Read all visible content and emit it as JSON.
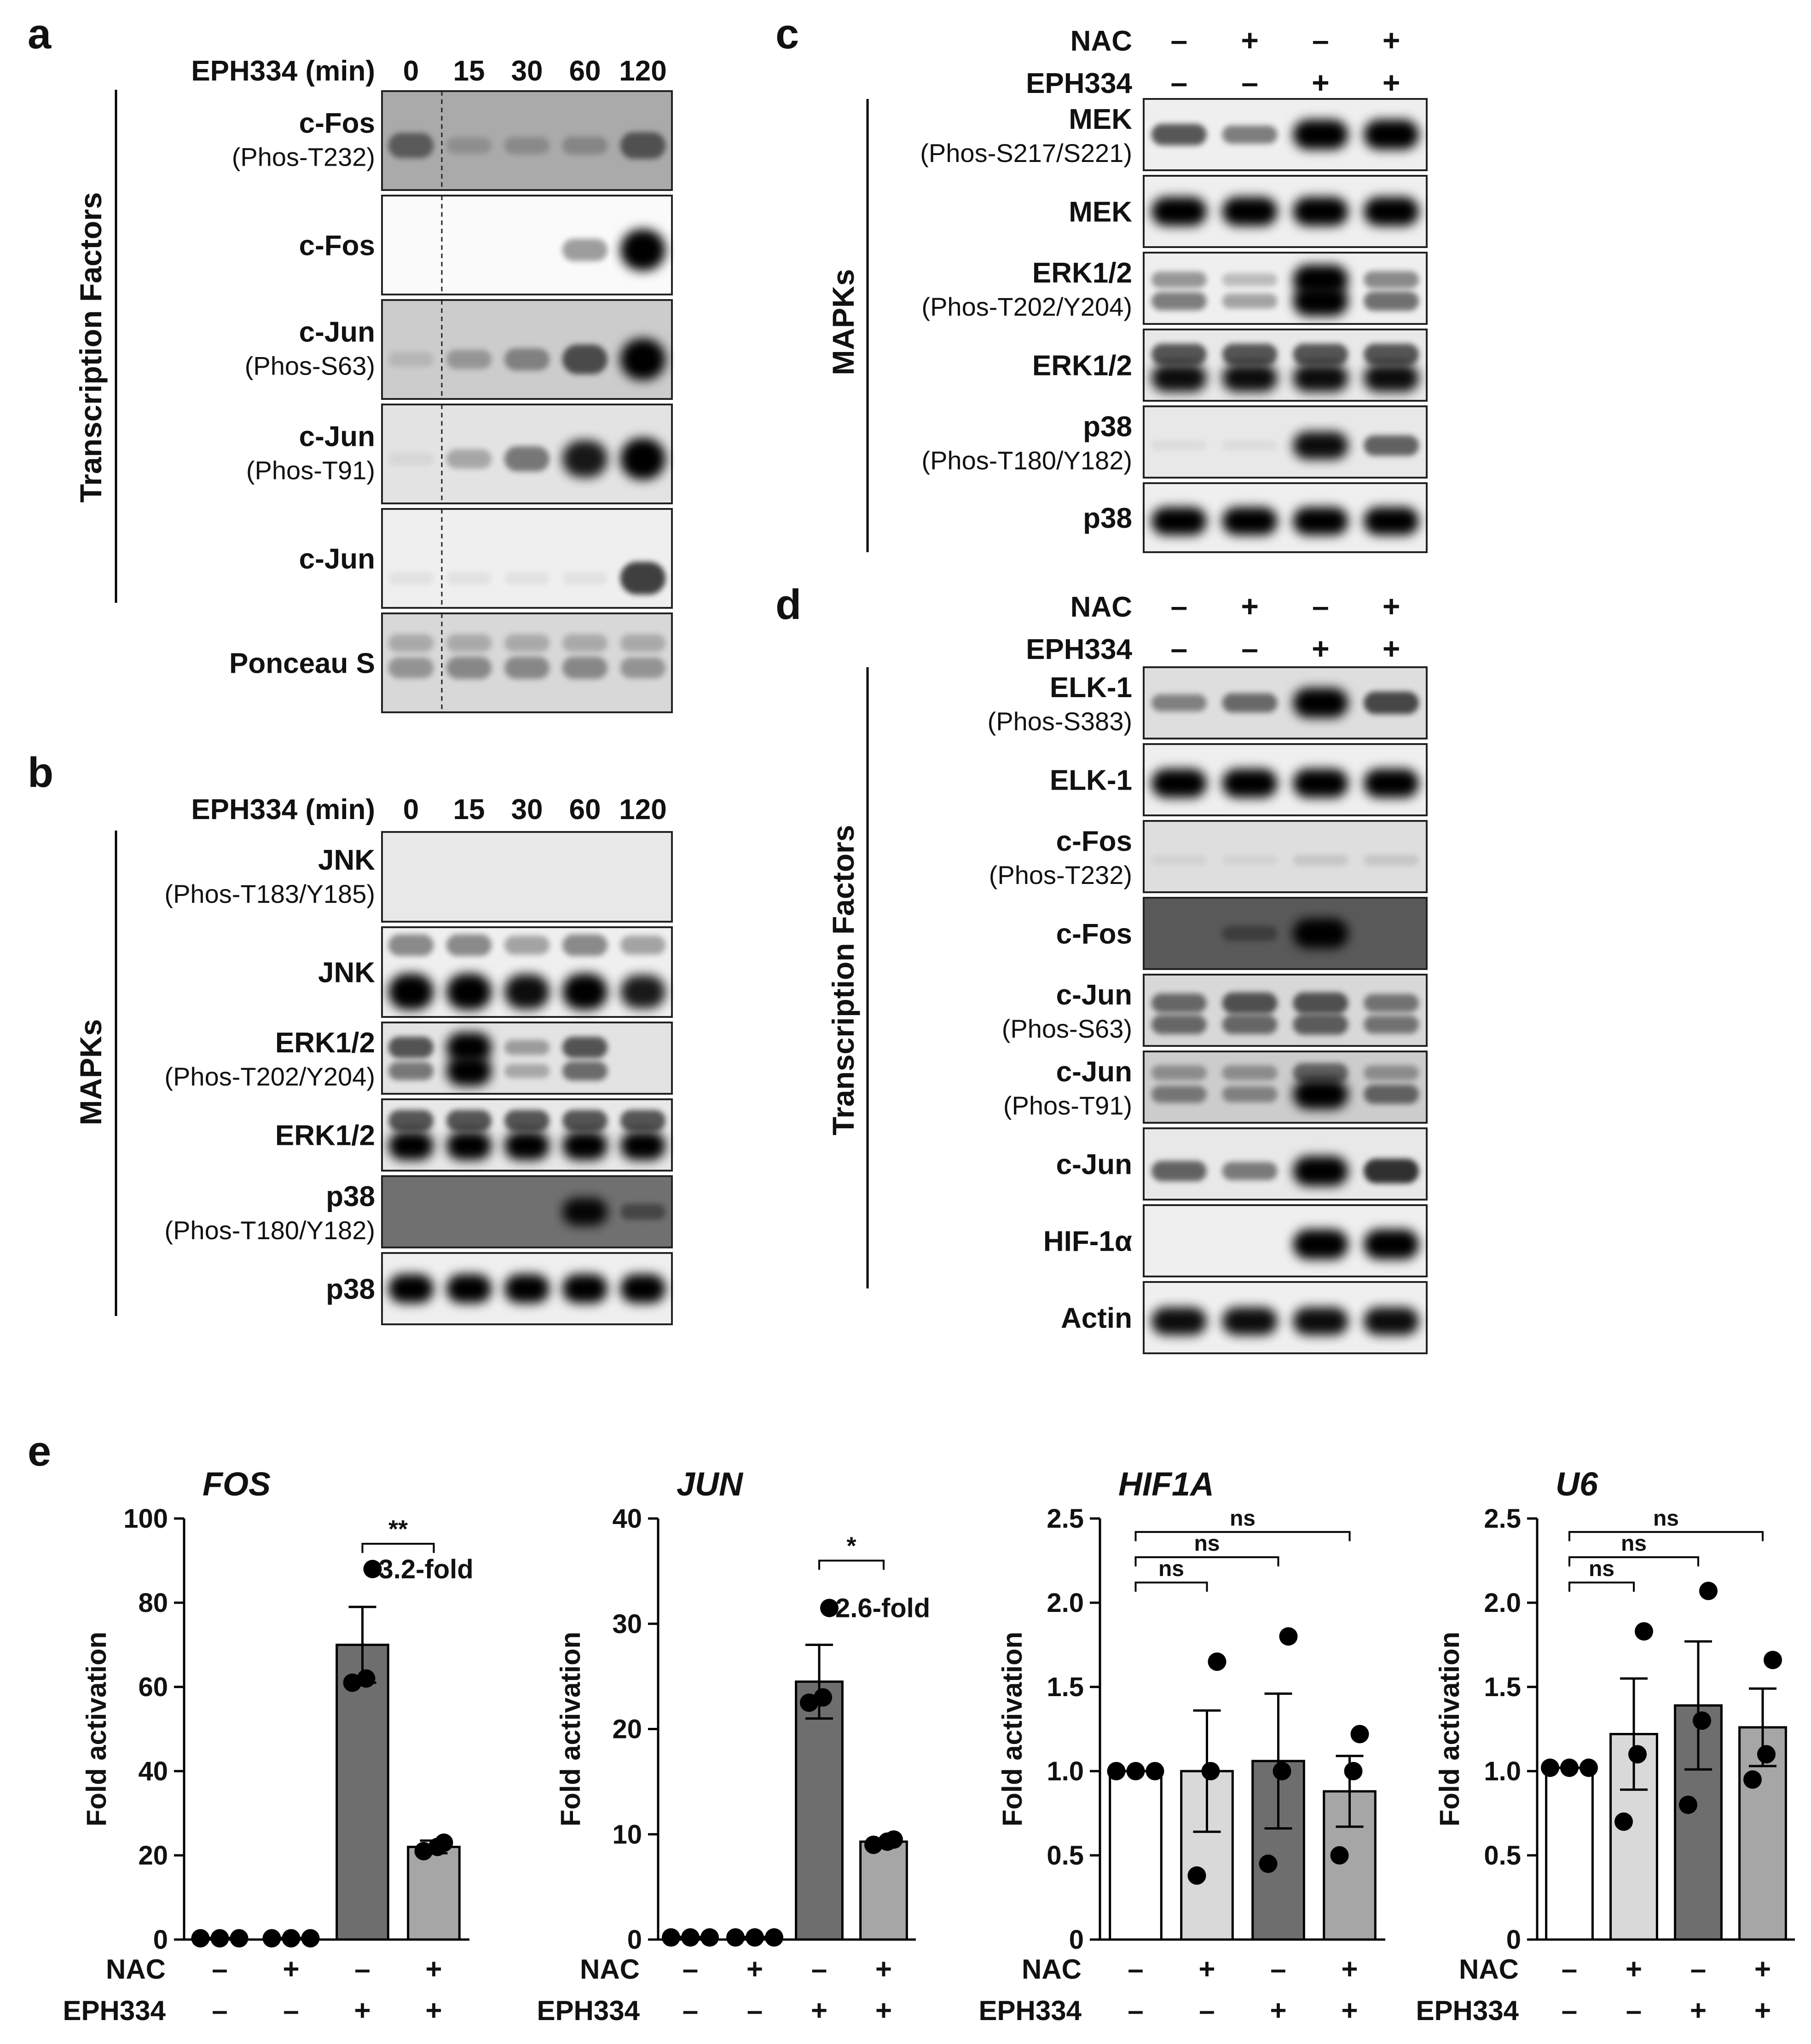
{
  "panel_a": {
    "letter": "a",
    "header_label": "EPH334 (min)",
    "lanes": [
      "0",
      "15",
      "30",
      "60",
      "120"
    ],
    "side_label": "Transcription Factors",
    "blots": [
      {
        "name": "c-Fos",
        "sub": "(Phos-T232)",
        "dark": 0.35
      },
      {
        "name": "c-Fos",
        "sub": "",
        "dark": 0.0
      },
      {
        "name": "c-Jun",
        "sub": "(Phos-S63)",
        "dark": 0.2
      },
      {
        "name": "c-Jun",
        "sub": "(Phos-T91)",
        "dark": 0.1
      },
      {
        "name": "c-Jun",
        "sub": "",
        "dark": 0.05
      },
      {
        "name": "Ponceau S",
        "sub": "",
        "dark": 0.15
      }
    ]
  },
  "panel_b": {
    "letter": "b",
    "header_label": "EPH334 (min)",
    "lanes": [
      "0",
      "15",
      "30",
      "60",
      "120"
    ],
    "side_label": "MAPKs",
    "blots": [
      {
        "name": "JNK",
        "sub": "(Phos-T183/Y185)",
        "dark": 0.08
      },
      {
        "name": "JNK",
        "sub": "",
        "dark": 0.05
      },
      {
        "name": "ERK1/2",
        "sub": "(Phos-T202/Y204)",
        "dark": 0.1
      },
      {
        "name": "ERK1/2",
        "sub": "",
        "dark": 0.08
      },
      {
        "name": "p38",
        "sub": "(Phos-T180/Y182)",
        "dark": 0.6
      },
      {
        "name": "p38",
        "sub": "",
        "dark": 0.05
      }
    ]
  },
  "panel_c": {
    "letter": "c",
    "cond_rows": [
      {
        "label": "NAC",
        "signs": [
          "–",
          "+",
          "–",
          "+"
        ]
      },
      {
        "label": "EPH334",
        "signs": [
          "–",
          "–",
          "+",
          "+"
        ]
      }
    ],
    "side_label": "MAPKs",
    "blots": [
      {
        "name": "MEK",
        "sub": "(Phos-S217/S221)",
        "dark": 0.05
      },
      {
        "name": "MEK",
        "sub": "",
        "dark": 0.05
      },
      {
        "name": "ERK1/2",
        "sub": "(Phos-T202/Y204)",
        "dark": 0.05
      },
      {
        "name": "ERK1/2",
        "sub": "",
        "dark": 0.08
      },
      {
        "name": "p38",
        "sub": "(Phos-T180/Y182)",
        "dark": 0.08
      },
      {
        "name": "p38",
        "sub": "",
        "dark": 0.05
      }
    ]
  },
  "panel_d": {
    "letter": "d",
    "cond_rows": [
      {
        "label": "NAC",
        "signs": [
          "–",
          "+",
          "–",
          "+"
        ]
      },
      {
        "label": "EPH334",
        "signs": [
          "–",
          "–",
          "+",
          "+"
        ]
      }
    ],
    "side_label": "Transcription Factors",
    "blots": [
      {
        "name": "ELK-1",
        "sub": "(Phos-S383)",
        "dark": 0.12
      },
      {
        "name": "ELK-1",
        "sub": "",
        "dark": 0.05
      },
      {
        "name": "c-Fos",
        "sub": "(Phos-T232)",
        "dark": 0.12
      },
      {
        "name": "c-Fos",
        "sub": "",
        "dark": 0.7
      },
      {
        "name": "c-Jun",
        "sub": "(Phos-S63)",
        "dark": 0.15
      },
      {
        "name": "c-Jun",
        "sub": "(Phos-T91)",
        "dark": 0.2
      },
      {
        "name": "c-Jun",
        "sub": "",
        "dark": 0.08
      },
      {
        "name": "HIF-1α",
        "sub": "",
        "dark": 0.05
      },
      {
        "name": "Actin",
        "sub": "",
        "dark": 0.05
      }
    ]
  },
  "panel_e": {
    "letter": "e",
    "cond_labels": [
      "NAC",
      "EPH334"
    ],
    "cond_signs": [
      [
        "–",
        "+",
        "–",
        "+"
      ],
      [
        "–",
        "–",
        "+",
        "+"
      ]
    ],
    "bar_colors": [
      "#ffffff",
      "#d9d9d9",
      "#6e6e6e",
      "#a6a6a6"
    ]
  },
  "chart_data": [
    {
      "type": "bar",
      "title": "FOS",
      "ylabel": "Fold activation",
      "ylim": [
        0,
        100
      ],
      "yticks": [
        "0",
        "20",
        "40",
        "60",
        "80",
        "100"
      ],
      "values": [
        0.3,
        0.3,
        70,
        22
      ],
      "errors": [
        0.1,
        0.1,
        9,
        1.5
      ],
      "points": [
        [
          0.3,
          0.3,
          0.3
        ],
        [
          0.3,
          0.3,
          0.3
        ],
        [
          61,
          62,
          88
        ],
        [
          21,
          22,
          23
        ]
      ],
      "annotations": [
        {
          "text": "**",
          "from": 2,
          "to": 3,
          "y": 94
        },
        {
          "text": "3.2-fold"
        }
      ]
    },
    {
      "type": "bar",
      "title": "JUN",
      "ylabel": "Fold activation",
      "ylim": [
        0,
        40
      ],
      "yticks": [
        "0",
        "10",
        "20",
        "30",
        "40"
      ],
      "values": [
        0.2,
        0.2,
        24.5,
        9.3
      ],
      "errors": [
        0.05,
        0.05,
        3.5,
        0.3
      ],
      "points": [
        [
          0.2,
          0.2,
          0.2
        ],
        [
          0.2,
          0.2,
          0.2
        ],
        [
          22.5,
          23,
          31.5
        ],
        [
          9,
          9.3,
          9.5
        ]
      ],
      "annotations": [
        {
          "text": "*",
          "from": 2,
          "to": 3,
          "y": 36
        },
        {
          "text": "2.6-fold"
        }
      ]
    },
    {
      "type": "bar",
      "title": "HIF1A",
      "ylabel": "Fold activation",
      "ylim": [
        0,
        2.5
      ],
      "yticks": [
        "0",
        "0.5",
        "1.0",
        "1.5",
        "2.0",
        "2.5"
      ],
      "values": [
        1.0,
        1.0,
        1.06,
        0.88
      ],
      "errors": [
        0,
        0.36,
        0.4,
        0.21
      ],
      "points": [
        [
          1.0,
          1.0,
          1.0
        ],
        [
          0.38,
          1.0,
          1.65
        ],
        [
          0.45,
          1.0,
          1.8
        ],
        [
          0.5,
          1.0,
          1.22
        ]
      ],
      "annotations": [
        {
          "text": "ns",
          "from": 0,
          "to": 1,
          "y": 2.12
        },
        {
          "text": "ns",
          "from": 0,
          "to": 2,
          "y": 2.27
        },
        {
          "text": "ns",
          "from": 0,
          "to": 3,
          "y": 2.42
        }
      ]
    },
    {
      "type": "bar",
      "title": "U6",
      "ylabel": "Fold activation",
      "ylim": [
        0,
        2.5
      ],
      "yticks": [
        "0",
        "0.5",
        "1.0",
        "1.5",
        "2.0",
        "2.5"
      ],
      "values": [
        1.02,
        1.22,
        1.39,
        1.26
      ],
      "errors": [
        0,
        0.33,
        0.38,
        0.23
      ],
      "points": [
        [
          1.02,
          1.02,
          1.02
        ],
        [
          0.7,
          1.1,
          1.83
        ],
        [
          0.8,
          1.3,
          2.07
        ],
        [
          0.95,
          1.1,
          1.66
        ]
      ],
      "annotations": [
        {
          "text": "ns",
          "from": 0,
          "to": 1,
          "y": 2.12
        },
        {
          "text": "ns",
          "from": 0,
          "to": 2,
          "y": 2.27
        },
        {
          "text": "ns",
          "from": 0,
          "to": 3,
          "y": 2.42
        }
      ]
    }
  ]
}
